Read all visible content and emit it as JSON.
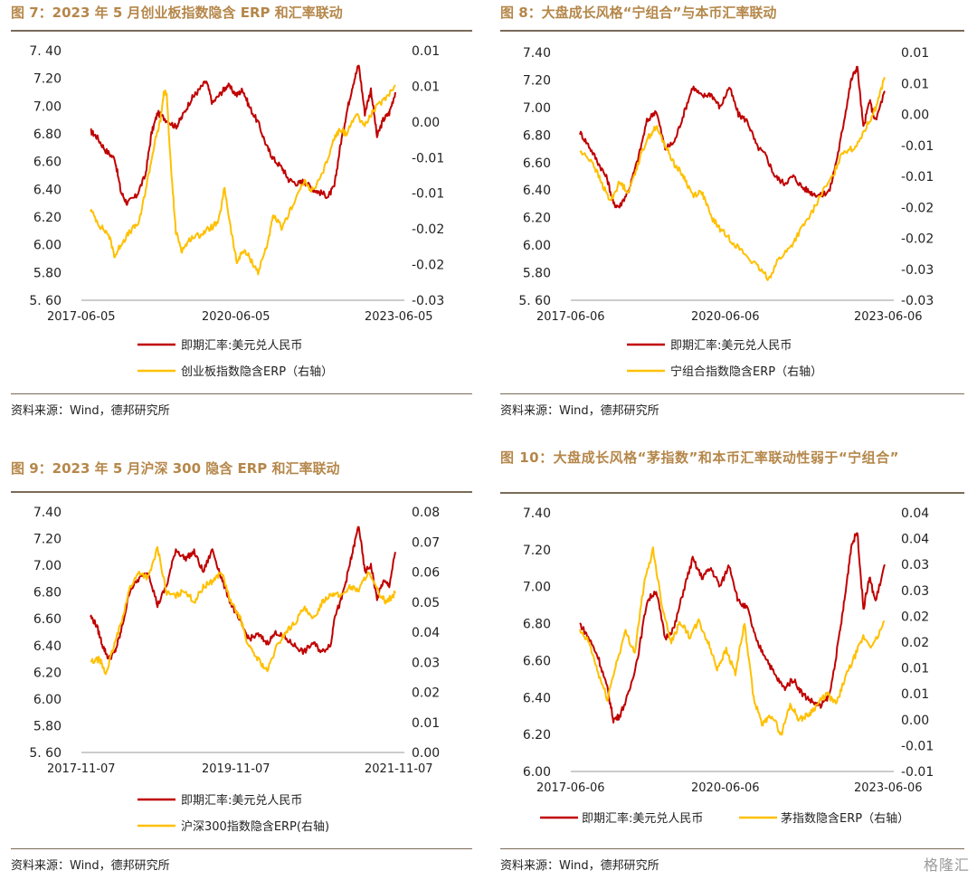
{
  "colors": {
    "left_series": "#c00000",
    "right_series": "#ffc000",
    "title": "#b5874a"
  },
  "watermark": "格隆汇",
  "charts": [
    {
      "id": "fig7",
      "title": "图 7：2023 年 5 月创业板指数隐含 ERP 和汇率联动",
      "source": "资料来源：Wind，德邦研究所",
      "chart_data": {
        "type": "line",
        "x_ticks": [
          "2017-06-05",
          "2020-06-05",
          "2023-06-05"
        ],
        "y_left": {
          "min": 5.6,
          "max": 7.4,
          "ticks": [
            "5. 60",
            "5.80",
            "6.00",
            "6.20",
            "6.40",
            "6.60",
            "6.80",
            "7.00",
            "7.20",
            "7. 40"
          ]
        },
        "y_right": {
          "min": -0.03,
          "max": 0.01,
          "ticks": [
            "-0.03",
            "-0.02",
            "-0.02",
            "-0.01",
            "-0.01",
            "0.00",
            "0.01",
            "0.01"
          ]
        },
        "series": [
          {
            "name": "即期汇率:美元兑人民币",
            "axis": "left",
            "x": [
              0,
              0.02,
              0.05,
              0.08,
              0.1,
              0.12,
              0.15,
              0.18,
              0.2,
              0.22,
              0.25,
              0.28,
              0.3,
              0.33,
              0.35,
              0.38,
              0.4,
              0.43,
              0.45,
              0.48,
              0.5,
              0.52,
              0.55,
              0.58,
              0.6,
              0.63,
              0.65,
              0.68,
              0.7,
              0.73,
              0.75,
              0.78,
              0.8,
              0.82,
              0.84,
              0.86,
              0.88,
              0.9,
              0.92,
              0.94,
              0.96,
              0.98,
              1.0
            ],
            "y": [
              6.82,
              6.78,
              6.68,
              6.62,
              6.38,
              6.3,
              6.35,
              6.5,
              6.8,
              6.95,
              6.9,
              6.85,
              6.92,
              7.05,
              7.1,
              7.18,
              7.02,
              7.1,
              7.15,
              7.08,
              7.12,
              7.0,
              6.88,
              6.7,
              6.62,
              6.55,
              6.47,
              6.44,
              6.46,
              6.4,
              6.38,
              6.35,
              6.42,
              6.72,
              6.95,
              7.15,
              7.3,
              6.95,
              7.12,
              6.78,
              6.9,
              6.95,
              7.1
            ]
          },
          {
            "name": "创业板指数隐含ERP（右轴）",
            "axis": "right",
            "x": [
              0,
              0.03,
              0.06,
              0.08,
              0.1,
              0.13,
              0.16,
              0.19,
              0.21,
              0.23,
              0.24,
              0.25,
              0.26,
              0.28,
              0.3,
              0.33,
              0.36,
              0.39,
              0.42,
              0.44,
              0.46,
              0.48,
              0.5,
              0.52,
              0.55,
              0.58,
              0.6,
              0.63,
              0.66,
              0.7,
              0.73,
              0.76,
              0.8,
              0.82,
              0.84,
              0.87,
              0.9,
              0.93,
              0.96,
              1.0
            ],
            "y": [
              -0.0155,
              -0.018,
              -0.0195,
              -0.023,
              -0.021,
              -0.019,
              -0.0175,
              -0.01,
              -0.005,
              -0.001,
              0.003,
              0.0035,
              -0.006,
              -0.019,
              -0.022,
              -0.02,
              -0.0195,
              -0.0185,
              -0.0175,
              -0.012,
              -0.0185,
              -0.024,
              -0.022,
              -0.023,
              -0.0255,
              -0.021,
              -0.0165,
              -0.0185,
              -0.015,
              -0.011,
              -0.0125,
              -0.01,
              -0.004,
              -0.0025,
              -0.0035,
              0.0,
              -0.002,
              0.0005,
              0.002,
              0.0045
            ]
          }
        ]
      }
    },
    {
      "id": "fig8",
      "title": "图 8：大盘成长风格“宁组合”与本币汇率联动",
      "source": "资料来源：Wind，德邦研究所",
      "chart_data": {
        "type": "line",
        "x_ticks": [
          "2017-06-06",
          "2020-06-06",
          "2023-06-06"
        ],
        "y_left": {
          "min": 5.6,
          "max": 7.4,
          "ticks": [
            "5. 60",
            "5.80",
            "6.00",
            "6.20",
            "6.40",
            "6.60",
            "6.80",
            "7.00",
            "7.20",
            "7.40"
          ]
        },
        "y_right": {
          "min": -0.03,
          "max": 0.01,
          "ticks": [
            "-0.03",
            "-0.03",
            "-0.02",
            "-0.02",
            "-0.01",
            "-0.01",
            "0.00",
            "0.01",
            "0.01"
          ]
        },
        "series": [
          {
            "name": "即期汇率:美元兑人民币",
            "axis": "left",
            "x": [
              0,
              0.03,
              0.06,
              0.09,
              0.11,
              0.13,
              0.16,
              0.19,
              0.22,
              0.25,
              0.28,
              0.31,
              0.34,
              0.37,
              0.4,
              0.43,
              0.46,
              0.49,
              0.52,
              0.55,
              0.58,
              0.61,
              0.64,
              0.67,
              0.7,
              0.73,
              0.76,
              0.79,
              0.82,
              0.85,
              0.87,
              0.89,
              0.91,
              0.93,
              0.95,
              0.97,
              1.0
            ],
            "y": [
              6.82,
              6.72,
              6.6,
              6.48,
              6.3,
              6.28,
              6.4,
              6.62,
              6.9,
              6.98,
              6.7,
              6.75,
              6.95,
              7.15,
              7.08,
              7.1,
              7.0,
              7.15,
              6.95,
              6.9,
              6.72,
              6.65,
              6.5,
              6.45,
              6.5,
              6.42,
              6.38,
              6.36,
              6.4,
              6.7,
              6.95,
              7.2,
              7.3,
              6.85,
              7.05,
              6.9,
              7.12
            ]
          },
          {
            "name": "宁组合指数隐含ERP（右轴）",
            "axis": "right",
            "x": [
              0,
              0.04,
              0.07,
              0.1,
              0.13,
              0.16,
              0.19,
              0.22,
              0.25,
              0.28,
              0.31,
              0.34,
              0.37,
              0.4,
              0.43,
              0.46,
              0.5,
              0.54,
              0.58,
              0.62,
              0.65,
              0.69,
              0.72,
              0.76,
              0.79,
              0.83,
              0.86,
              0.9,
              0.94,
              0.97,
              1.0
            ],
            "y": [
              -0.006,
              -0.0075,
              -0.011,
              -0.014,
              -0.011,
              -0.0125,
              -0.008,
              -0.004,
              -0.002,
              -0.005,
              -0.008,
              -0.01,
              -0.013,
              -0.0125,
              -0.0165,
              -0.0185,
              -0.0205,
              -0.0225,
              -0.0245,
              -0.0265,
              -0.0235,
              -0.0215,
              -0.019,
              -0.016,
              -0.013,
              -0.01,
              -0.006,
              -0.0055,
              -0.002,
              0.001,
              0.006
            ]
          }
        ]
      }
    },
    {
      "id": "fig9",
      "title": "图 9：2023 年 5 月沪深 300 隐含 ERP 和汇率联动",
      "source": "资料来源：Wind，德邦研究所",
      "chart_data": {
        "type": "line",
        "x_ticks": [
          "2017-11-07",
          "2019-11-07",
          "2021-11-07"
        ],
        "y_left": {
          "min": 5.6,
          "max": 7.4,
          "ticks": [
            "5. 60",
            "5.80",
            "6.00",
            "6.20",
            "6.40",
            "6.60",
            "6.80",
            "7.00",
            "7.20",
            "7.40"
          ]
        },
        "y_right": {
          "min": 0.0,
          "max": 0.08,
          "ticks": [
            "0.00",
            "0.01",
            "0.02",
            "0.03",
            "0.04",
            "0.05",
            "0.06",
            "0.07",
            "0.08"
          ]
        },
        "series": [
          {
            "name": "即期汇率:美元兑人民币",
            "axis": "left",
            "x": [
              0,
              0.02,
              0.04,
              0.06,
              0.08,
              0.1,
              0.13,
              0.16,
              0.19,
              0.22,
              0.25,
              0.28,
              0.31,
              0.34,
              0.37,
              0.4,
              0.43,
              0.46,
              0.49,
              0.52,
              0.55,
              0.58,
              0.61,
              0.64,
              0.67,
              0.7,
              0.73,
              0.76,
              0.79,
              0.8,
              0.82,
              0.84,
              0.86,
              0.88,
              0.9,
              0.92,
              0.94,
              0.96,
              0.98,
              1.0
            ],
            "y": [
              6.62,
              6.55,
              6.4,
              6.3,
              6.35,
              6.5,
              6.82,
              6.9,
              6.95,
              6.7,
              6.85,
              7.12,
              7.05,
              7.1,
              6.95,
              7.12,
              6.9,
              6.72,
              6.58,
              6.45,
              6.48,
              6.42,
              6.5,
              6.45,
              6.4,
              6.35,
              6.42,
              6.35,
              6.42,
              6.62,
              6.72,
              6.9,
              7.1,
              7.3,
              6.95,
              7.0,
              6.75,
              6.88,
              6.85,
              7.1
            ]
          },
          {
            "name": "沪深300指数隐含ERP(右轴)",
            "axis": "right",
            "x": [
              0,
              0.03,
              0.05,
              0.07,
              0.1,
              0.13,
              0.16,
              0.19,
              0.22,
              0.25,
              0.28,
              0.31,
              0.34,
              0.37,
              0.4,
              0.43,
              0.46,
              0.49,
              0.52,
              0.55,
              0.58,
              0.61,
              0.64,
              0.67,
              0.7,
              0.73,
              0.76,
              0.79,
              0.82,
              0.85,
              0.88,
              0.91,
              0.94,
              0.97,
              1.0
            ],
            "y": [
              0.03,
              0.031,
              0.026,
              0.033,
              0.043,
              0.055,
              0.06,
              0.058,
              0.068,
              0.053,
              0.052,
              0.054,
              0.05,
              0.055,
              0.057,
              0.06,
              0.05,
              0.045,
              0.035,
              0.031,
              0.027,
              0.035,
              0.04,
              0.043,
              0.048,
              0.044,
              0.05,
              0.053,
              0.052,
              0.055,
              0.054,
              0.06,
              0.054,
              0.05,
              0.053
            ]
          }
        ]
      }
    },
    {
      "id": "fig10",
      "title": "图 10：大盘成长风格“茅指数”和本币汇率联动性弱于“宁组合”",
      "source": "资料来源：Wind，德邦研究所",
      "chart_data": {
        "type": "line",
        "x_ticks": [
          "2017-06-06",
          "2020-06-06",
          "2023-06-06"
        ],
        "y_left": {
          "min": 6.0,
          "max": 7.4,
          "ticks": [
            "6.00",
            "6.20",
            "6.40",
            "6.60",
            "6.80",
            "7.00",
            "7.20",
            "7.40"
          ]
        },
        "y_right": {
          "min": -0.01,
          "max": 0.04,
          "ticks": [
            "-0.01",
            "-0.01",
            "0.00",
            "0.01",
            "0.01",
            "0.02",
            "0.02",
            "0.03",
            "0.03",
            "0.04",
            "0.04"
          ]
        },
        "series": [
          {
            "name": "即期汇率:美元兑人民币",
            "axis": "left",
            "x": [
              0,
              0.03,
              0.06,
              0.09,
              0.11,
              0.13,
              0.16,
              0.19,
              0.22,
              0.25,
              0.28,
              0.31,
              0.34,
              0.37,
              0.4,
              0.43,
              0.46,
              0.49,
              0.52,
              0.55,
              0.58,
              0.61,
              0.64,
              0.67,
              0.7,
              0.73,
              0.76,
              0.79,
              0.82,
              0.85,
              0.87,
              0.89,
              0.91,
              0.93,
              0.95,
              0.97,
              1.0
            ],
            "y": [
              6.8,
              6.72,
              6.62,
              6.45,
              6.28,
              6.3,
              6.42,
              6.62,
              6.92,
              6.98,
              6.72,
              6.78,
              6.98,
              7.15,
              7.05,
              7.1,
              7.0,
              7.12,
              6.92,
              6.88,
              6.7,
              6.62,
              6.52,
              6.45,
              6.5,
              6.42,
              6.38,
              6.35,
              6.42,
              6.72,
              6.95,
              7.22,
              7.3,
              6.88,
              7.05,
              6.92,
              7.12
            ]
          },
          {
            "name": "茅指数隐含ERP（右轴）",
            "axis": "right",
            "x": [
              0,
              0.03,
              0.06,
              0.09,
              0.12,
              0.15,
              0.18,
              0.21,
              0.24,
              0.27,
              0.3,
              0.33,
              0.36,
              0.39,
              0.42,
              0.45,
              0.48,
              0.51,
              0.54,
              0.57,
              0.6,
              0.63,
              0.66,
              0.69,
              0.72,
              0.75,
              0.78,
              0.81,
              0.84,
              0.87,
              0.9,
              0.93,
              0.96,
              1.0
            ],
            "y": [
              0.017,
              0.015,
              0.009,
              0.004,
              0.011,
              0.017,
              0.013,
              0.026,
              0.033,
              0.022,
              0.015,
              0.019,
              0.016,
              0.019,
              0.015,
              0.01,
              0.0135,
              0.009,
              0.0185,
              0.004,
              -0.001,
              0.001,
              -0.003,
              0.003,
              0.0,
              0.001,
              0.003,
              0.005,
              0.003,
              0.008,
              0.012,
              0.016,
              0.014,
              0.019
            ]
          }
        ]
      }
    }
  ]
}
